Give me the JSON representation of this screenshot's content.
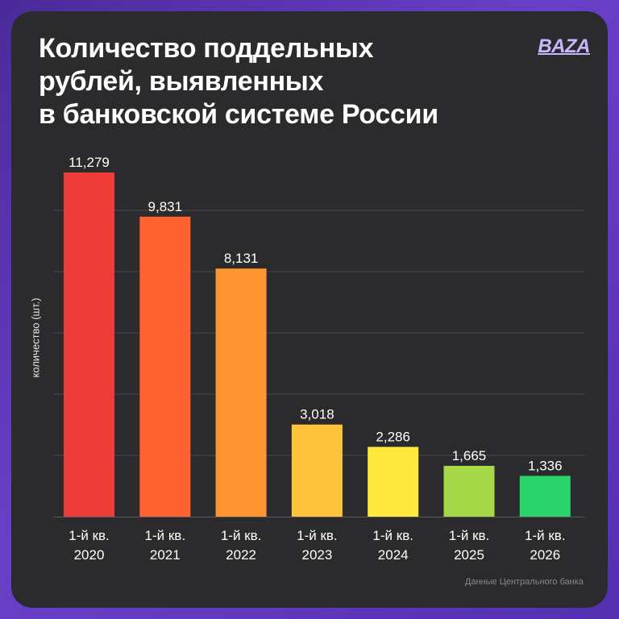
{
  "brand": {
    "logo_text": "BAZA"
  },
  "title_lines": [
    "Количество поддельных",
    "рублей, выявленных",
    "в банковской системе России"
  ],
  "source": "Данные Центрального банка",
  "chart_data": {
    "type": "bar",
    "title": "Количество поддельных рублей, выявленных в банковской системе России",
    "xlabel": "",
    "ylabel": "количество (шт.)",
    "categories": [
      [
        "1-й кв.",
        "2020"
      ],
      [
        "1-й кв.",
        "2021"
      ],
      [
        "1-й кв.",
        "2022"
      ],
      [
        "1-й кв.",
        "2023"
      ],
      [
        "1-й кв.",
        "2024"
      ],
      [
        "1-й кв.",
        "2025"
      ],
      [
        "1-й кв.",
        "2026"
      ]
    ],
    "values": [
      11279,
      9831,
      8131,
      3018,
      2286,
      1665,
      1336
    ],
    "value_labels": [
      "11,279",
      "9,831",
      "8,131",
      "3,018",
      "2,286",
      "1,665",
      "1,336"
    ],
    "bar_colors": [
      "#f03b3b",
      "#ff6332",
      "#ff9530",
      "#ffc43c",
      "#ffe93c",
      "#a6d84a",
      "#2bd46a"
    ],
    "ylim": [
      0,
      11279
    ],
    "grid": true,
    "grid_color": "#4a4a4e",
    "legend": "none"
  }
}
